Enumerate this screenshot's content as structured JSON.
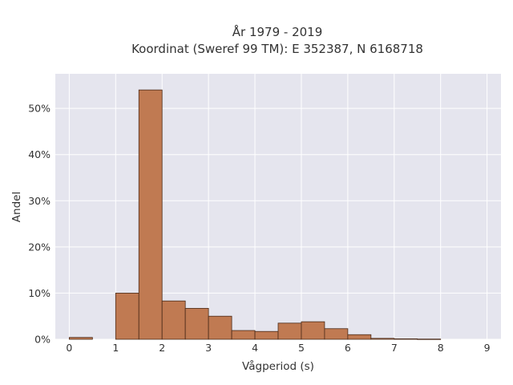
{
  "chart_data": {
    "type": "bar",
    "title_lines": [
      "År 1979 - 2019",
      "Koordinat (Sweref 99 TM): E 352387, N 6168718"
    ],
    "xlabel": "Vågperiod (s)",
    "ylabel": "Andel",
    "xlim": [
      -0.3,
      9.3
    ],
    "ylim": [
      0,
      0.575
    ],
    "x_ticks": [
      0,
      1,
      2,
      3,
      4,
      5,
      6,
      7,
      8,
      9
    ],
    "y_ticks": [
      0,
      0.1,
      0.2,
      0.3,
      0.4,
      0.5
    ],
    "y_tick_labels": [
      "0%",
      "10%",
      "20%",
      "30%",
      "40%",
      "50%"
    ],
    "bin_width": 0.5,
    "bins": [
      {
        "x0": 0.0,
        "value": 0.004
      },
      {
        "x0": 0.5,
        "value": 0.0
      },
      {
        "x0": 1.0,
        "value": 0.1
      },
      {
        "x0": 1.5,
        "value": 0.54
      },
      {
        "x0": 2.0,
        "value": 0.083
      },
      {
        "x0": 2.5,
        "value": 0.067
      },
      {
        "x0": 3.0,
        "value": 0.05
      },
      {
        "x0": 3.5,
        "value": 0.019
      },
      {
        "x0": 4.0,
        "value": 0.017
      },
      {
        "x0": 4.5,
        "value": 0.035
      },
      {
        "x0": 5.0,
        "value": 0.038
      },
      {
        "x0": 5.5,
        "value": 0.023
      },
      {
        "x0": 6.0,
        "value": 0.01
      },
      {
        "x0": 6.5,
        "value": 0.002
      },
      {
        "x0": 7.0,
        "value": 0.001
      },
      {
        "x0": 7.5,
        "value": 0.0005
      }
    ],
    "grid": true,
    "colors": {
      "bar_fill": "#c07a52",
      "bar_edge": "#4a2a18",
      "plot_background": "#e5e5ee",
      "grid": "#ffffff",
      "text": "#333333"
    }
  }
}
